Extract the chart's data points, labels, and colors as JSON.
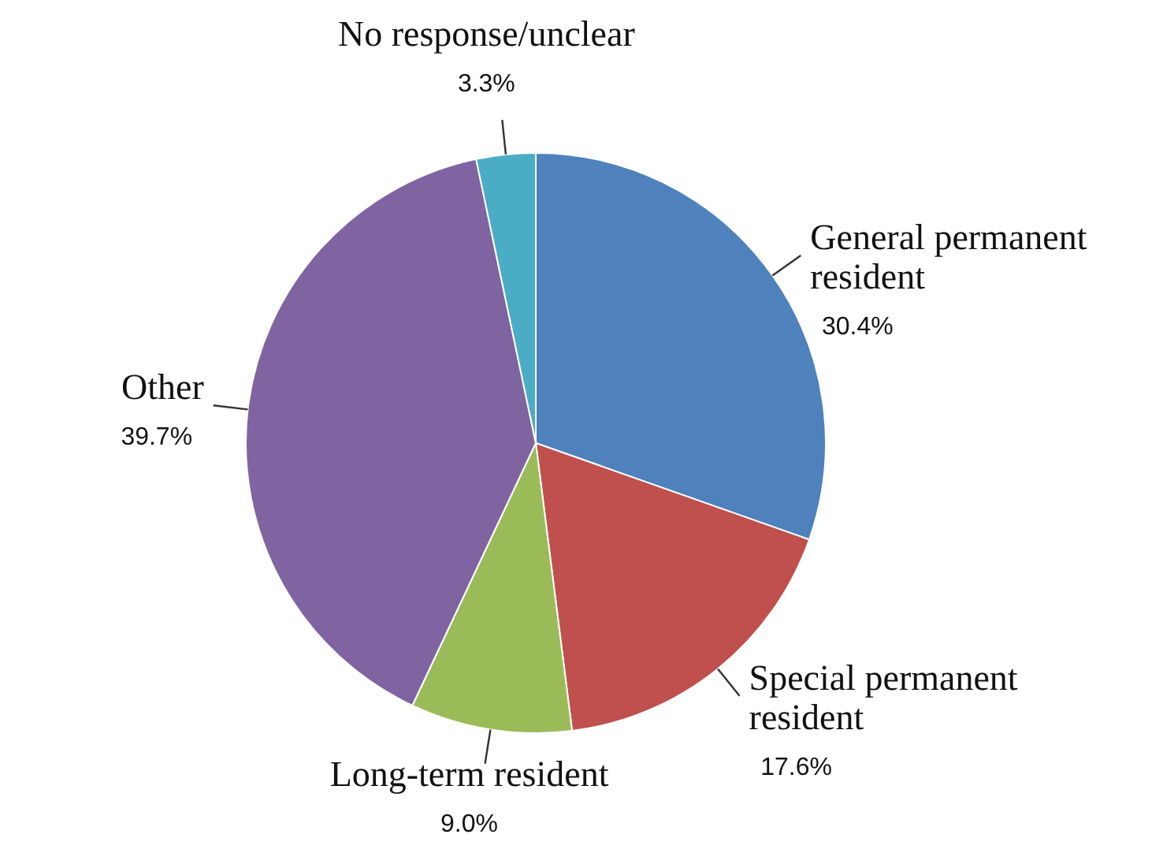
{
  "chart_data": {
    "type": "pie",
    "categories": [
      "General permanent resident",
      "Special permanent resident",
      "Long-term resident",
      "Other",
      "No response/unclear"
    ],
    "values": [
      30.4,
      17.6,
      9.0,
      39.7,
      3.3
    ],
    "value_labels": [
      "30.4%",
      "17.6%",
      "9.0%",
      "39.7%",
      "3.3%"
    ],
    "colors": [
      "#4f81bd",
      "#c0504d",
      "#9bbb59",
      "#8064a2",
      "#4bacc6"
    ],
    "legend": false
  }
}
